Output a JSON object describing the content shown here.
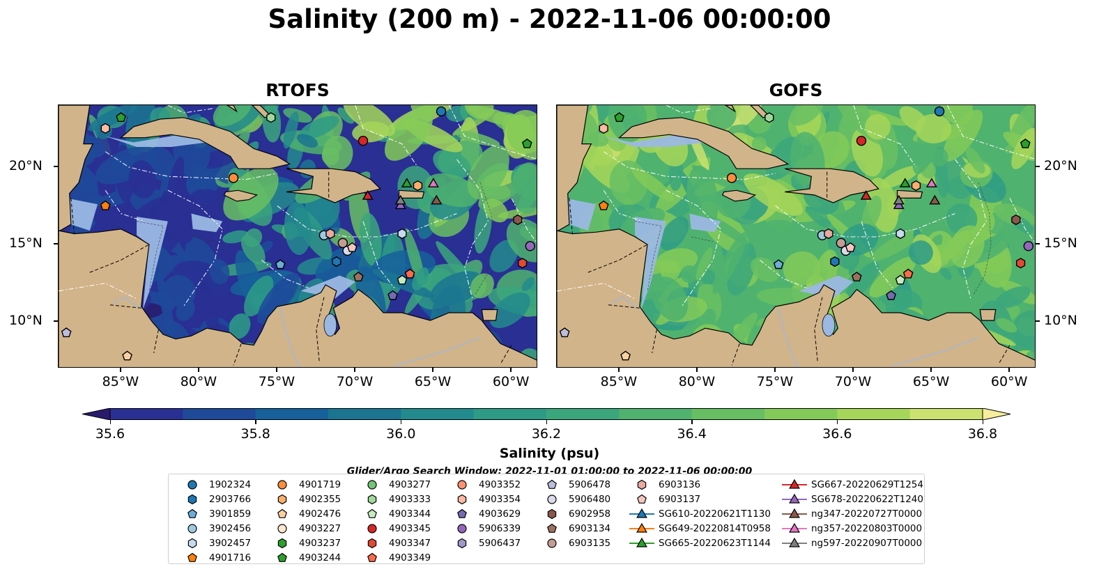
{
  "title": "Salinity (200 m) - 2022-11-06 00:00:00",
  "panels": [
    {
      "title": "RTOFS",
      "model": "rtofs"
    },
    {
      "title": "GOFS",
      "model": "gofs"
    }
  ],
  "map_extent": {
    "lon_min": -89,
    "lon_max": -58.3,
    "lat_min": 7,
    "lat_max": 24
  },
  "lon_ticks": [
    {
      "value": -85,
      "label": "85°W"
    },
    {
      "value": -80,
      "label": "80°W"
    },
    {
      "value": -75,
      "label": "75°W"
    },
    {
      "value": -70,
      "label": "70°W"
    },
    {
      "value": -65,
      "label": "65°W"
    },
    {
      "value": -60,
      "label": "60°W"
    }
  ],
  "lat_ticks": [
    {
      "value": 10,
      "label": "10°N"
    },
    {
      "value": 15,
      "label": "15°N"
    },
    {
      "value": 20,
      "label": "20°N"
    }
  ],
  "colorbar": {
    "label": "Salinity (psu)",
    "min": 35.5,
    "max": 36.9,
    "ticks": [
      "35.6",
      "35.8",
      "36.0",
      "36.2",
      "36.4",
      "36.6",
      "36.8"
    ],
    "colors": [
      "#2a1a6c",
      "#292f93",
      "#1f4a9a",
      "#16609b",
      "#1b7590",
      "#238a8d",
      "#2e9b86",
      "#3ba67c",
      "#4fb26f",
      "#68be63",
      "#84ca58",
      "#a6d659",
      "#cbe170",
      "#f6ee9d"
    ],
    "extend": "both"
  },
  "land_color": "#d1b48a",
  "ocean_color": "#9bb8e3",
  "search_window": "Glider/Argo Search Window: 2022-11-01 01:00:00 to 2022-11-06 00:00:00",
  "legend": [
    {
      "label": "1902324",
      "marker": "circle",
      "color": "#1f77b4"
    },
    {
      "label": "2903766",
      "marker": "hexagon",
      "color": "#1f77b4"
    },
    {
      "label": "3901859",
      "marker": "pentagon",
      "color": "#6baed6"
    },
    {
      "label": "3902456",
      "marker": "circle",
      "color": "#9ecae1"
    },
    {
      "label": "3902457",
      "marker": "hexagon",
      "color": "#c6dbef"
    },
    {
      "label": "4901716",
      "marker": "pentagon",
      "color": "#ff7f0e"
    },
    {
      "label": "4901719",
      "marker": "circle",
      "color": "#fd8d3c"
    },
    {
      "label": "4902355",
      "marker": "hexagon",
      "color": "#fdae6b"
    },
    {
      "label": "4902476",
      "marker": "pentagon",
      "color": "#fdd0a2"
    },
    {
      "label": "4903227",
      "marker": "circle",
      "color": "#fde7cf"
    },
    {
      "label": "4903237",
      "marker": "hexagon",
      "color": "#2ca02c"
    },
    {
      "label": "4903244",
      "marker": "pentagon",
      "color": "#2ca02c"
    },
    {
      "label": "4903277",
      "marker": "circle",
      "color": "#74c476"
    },
    {
      "label": "4903333",
      "marker": "hexagon",
      "color": "#a1d99b"
    },
    {
      "label": "4903344",
      "marker": "pentagon",
      "color": "#c7e9c0"
    },
    {
      "label": "4903345",
      "marker": "circle",
      "color": "#d62728"
    },
    {
      "label": "4903347",
      "marker": "hexagon",
      "color": "#e34a33"
    },
    {
      "label": "4903349",
      "marker": "pentagon",
      "color": "#fb6a4a"
    },
    {
      "label": "4903352",
      "marker": "circle",
      "color": "#fc9272"
    },
    {
      "label": "4903354",
      "marker": "hexagon",
      "color": "#fcbba1"
    },
    {
      "label": "4903629",
      "marker": "pentagon",
      "color": "#756bb1"
    },
    {
      "label": "5906339",
      "marker": "circle",
      "color": "#9467bd"
    },
    {
      "label": "5906437",
      "marker": "hexagon",
      "color": "#9e9ac8"
    },
    {
      "label": "5906478",
      "marker": "pentagon",
      "color": "#bcbddc"
    },
    {
      "label": "5906480",
      "marker": "circle",
      "color": "#dadaeb"
    },
    {
      "label": "6902958",
      "marker": "hexagon",
      "color": "#8c564b"
    },
    {
      "label": "6903134",
      "marker": "pentagon",
      "color": "#a0705f"
    },
    {
      "label": "6903135",
      "marker": "circle",
      "color": "#c49c94"
    },
    {
      "label": "6903136",
      "marker": "hexagon",
      "color": "#e7a9a0"
    },
    {
      "label": "6903137",
      "marker": "pentagon",
      "color": "#f5c5be"
    },
    {
      "label": "SG610-20220621T1130",
      "marker": "triangle-line",
      "color": "#1f77b4"
    },
    {
      "label": "SG649-20220814T0958",
      "marker": "triangle-line",
      "color": "#ff7f0e"
    },
    {
      "label": "SG665-20220623T1144",
      "marker": "triangle-line",
      "color": "#2ca02c"
    },
    {
      "label": "SG667-20220629T1254",
      "marker": "triangle-line",
      "color": "#d62728"
    },
    {
      "label": "SG678-20220622T1240",
      "marker": "triangle-line",
      "color": "#9467bd"
    },
    {
      "label": "ng347-20220727T0000",
      "marker": "triangle-line",
      "color": "#8c564b"
    },
    {
      "label": "ng357-20220803T0000",
      "marker": "triangle-line",
      "color": "#e377c2"
    },
    {
      "label": "ng597-20220907T0000",
      "marker": "triangle-line",
      "color": "#7f7f7f"
    }
  ],
  "markers": [
    {
      "label": "1902324",
      "lon": -64.5,
      "lat": 23.6
    },
    {
      "label": "4903244",
      "lon": -85.0,
      "lat": 23.2
    },
    {
      "label": "4903333",
      "lon": -75.4,
      "lat": 23.2
    },
    {
      "label": "4903354",
      "lon": -86.0,
      "lat": 22.5
    },
    {
      "label": "4903345",
      "lon": -69.5,
      "lat": 21.7
    },
    {
      "label": "4903244",
      "lon": -59.0,
      "lat": 21.5
    },
    {
      "label": "4901719",
      "lon": -77.8,
      "lat": 19.3
    },
    {
      "label": "4901716",
      "lon": -86.0,
      "lat": 17.5
    },
    {
      "label": "4902355",
      "lon": -66.0,
      "lat": 18.8
    },
    {
      "label": "6902958",
      "lon": -59.6,
      "lat": 16.6
    },
    {
      "label": "3902456",
      "lon": -72.0,
      "lat": 15.6
    },
    {
      "label": "6903136",
      "lon": -71.6,
      "lat": 15.7
    },
    {
      "label": "3902457",
      "lon": -67.0,
      "lat": 15.7
    },
    {
      "label": "6903135",
      "lon": -70.8,
      "lat": 15.1
    },
    {
      "label": "5906480",
      "lon": -70.5,
      "lat": 14.6
    },
    {
      "label": "6903137",
      "lon": -70.2,
      "lat": 14.8
    },
    {
      "label": "5906339",
      "lon": -58.8,
      "lat": 14.9
    },
    {
      "label": "2903766",
      "lon": -71.2,
      "lat": 13.9
    },
    {
      "label": "3901859",
      "lon": -74.8,
      "lat": 13.7
    },
    {
      "label": "4903347",
      "lon": -59.3,
      "lat": 13.8
    },
    {
      "label": "4903349",
      "lon": -66.5,
      "lat": 13.1
    },
    {
      "label": "6903134",
      "lon": -69.8,
      "lat": 12.9
    },
    {
      "label": "4903344",
      "lon": -67.0,
      "lat": 12.7
    },
    {
      "label": "4903629",
      "lon": -67.6,
      "lat": 11.7
    },
    {
      "label": "5906478",
      "lon": -88.5,
      "lat": 9.3
    },
    {
      "label": "4902476",
      "lon": -84.6,
      "lat": 7.8
    },
    {
      "label": "SG665-20220623T1144",
      "lon": -66.7,
      "lat": 18.9
    },
    {
      "label": "ng357-20220803T0000",
      "lon": -65.0,
      "lat": 18.9
    },
    {
      "label": "SG667-20220629T1254",
      "lon": -69.2,
      "lat": 18.1
    },
    {
      "label": "ng347-20220727T0000",
      "lon": -64.8,
      "lat": 17.8
    },
    {
      "label": "SG678-20220622T1240",
      "lon": -67.1,
      "lat": 17.5
    },
    {
      "label": "ng597-20220907T0000",
      "lon": -67.1,
      "lat": 17.8
    }
  ]
}
